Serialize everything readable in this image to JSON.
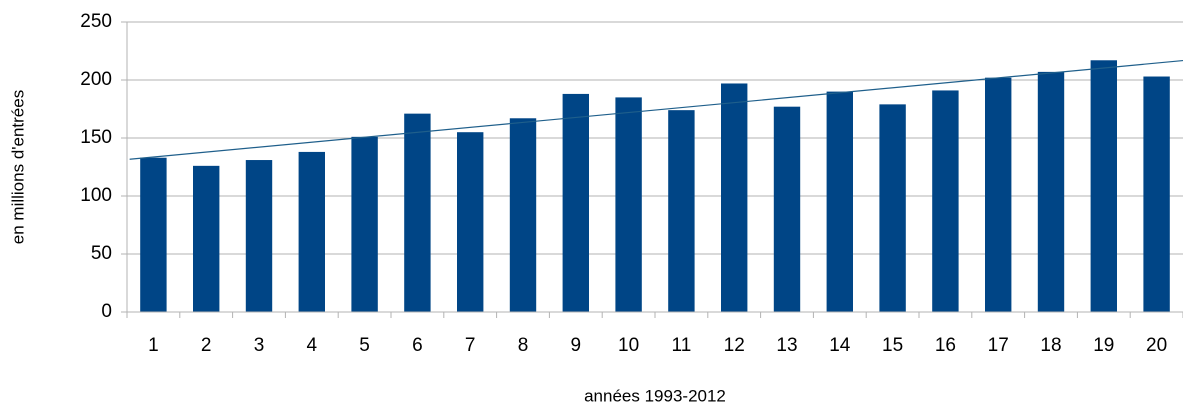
{
  "chart_data": {
    "type": "bar",
    "x_label": "années 1993-2012",
    "y_label": "en millions d'entrées",
    "categories": [
      "1",
      "2",
      "3",
      "4",
      "5",
      "6",
      "7",
      "8",
      "9",
      "10",
      "11",
      "12",
      "13",
      "14",
      "15",
      "16",
      "17",
      "18",
      "19",
      "20"
    ],
    "values": [
      133,
      126,
      131,
      138,
      151,
      171,
      155,
      167,
      188,
      185,
      174,
      197,
      177,
      190,
      179,
      191,
      202,
      207,
      217,
      203
    ],
    "color": "#004586",
    "trendline": true,
    "trendline_color": "#1f5f8b",
    "ylim": [
      0,
      250
    ],
    "yticks": [
      0,
      50,
      100,
      150,
      200,
      250
    ],
    "grid": true
  }
}
